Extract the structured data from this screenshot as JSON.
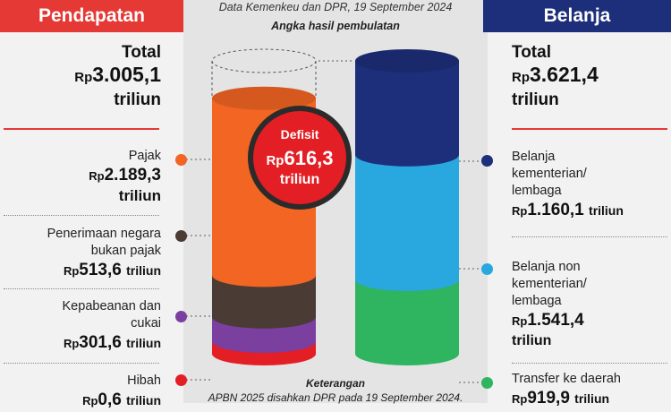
{
  "header": {
    "left_title": "Pendapatan",
    "right_title": "Belanja",
    "source": "Data Kemenkeu dan DPR, 19 September 2024",
    "rounding_note": "Angka hasil pembulatan"
  },
  "currency": "Rp",
  "unit": "triliun",
  "left": {
    "total_label": "Total",
    "total_value": "3.005,1",
    "items": [
      {
        "label_lines": [
          "Pajak"
        ],
        "value": "2.189,3",
        "color": "#f26522"
      },
      {
        "label_lines": [
          "Penerimaan negara",
          "bukan pajak"
        ],
        "value": "513,6",
        "color": "#4a3b34"
      },
      {
        "label_lines": [
          "Kepabeanan dan",
          "cukai"
        ],
        "value": "301,6",
        "color": "#7b3fa0"
      },
      {
        "label_lines": [
          "Hibah"
        ],
        "value": "0,6",
        "color": "#e31e24"
      }
    ]
  },
  "right": {
    "total_label": "Total",
    "total_value": "3.621,4",
    "items": [
      {
        "label_lines": [
          "Belanja",
          "kementerian/",
          "lembaga"
        ],
        "value": "1.160,1",
        "color": "#1d2f7a"
      },
      {
        "label_lines": [
          "Belanja non",
          "kementerian/",
          "lembaga"
        ],
        "value": "1.541,4",
        "color": "#29a8e0"
      },
      {
        "label_lines": [
          "Transfer ke daerah"
        ],
        "value": "919,9",
        "color": "#2fb45f"
      }
    ]
  },
  "deficit": {
    "label": "Defisit",
    "value": "616,3"
  },
  "note": {
    "title": "Keterangan",
    "text": "APBN 2025 disahkan DPR pada 19 September 2024."
  },
  "chart_data": {
    "type": "bar",
    "categories": [
      "Pendapatan",
      "Belanja"
    ],
    "series": [
      {
        "name": "Pajak",
        "values": [
          2189.3,
          0
        ],
        "color": "#f26522"
      },
      {
        "name": "Penerimaan negara bukan pajak",
        "values": [
          513.6,
          0
        ],
        "color": "#4a3b34"
      },
      {
        "name": "Kepabeanan dan cukai",
        "values": [
          301.6,
          0
        ],
        "color": "#7b3fa0"
      },
      {
        "name": "Hibah",
        "values": [
          0.6,
          0
        ],
        "color": "#e31e24"
      },
      {
        "name": "Belanja kementerian/lembaga",
        "values": [
          0,
          1160.1
        ],
        "color": "#1d2f7a"
      },
      {
        "name": "Belanja non kementerian/lembaga",
        "values": [
          0,
          1541.4
        ],
        "color": "#29a8e0"
      },
      {
        "name": "Transfer ke daerah",
        "values": [
          0,
          919.9
        ],
        "color": "#2fb45f"
      }
    ],
    "totals": [
      3005.1,
      3621.4
    ],
    "deficit": 616.3,
    "stacked": true
  }
}
